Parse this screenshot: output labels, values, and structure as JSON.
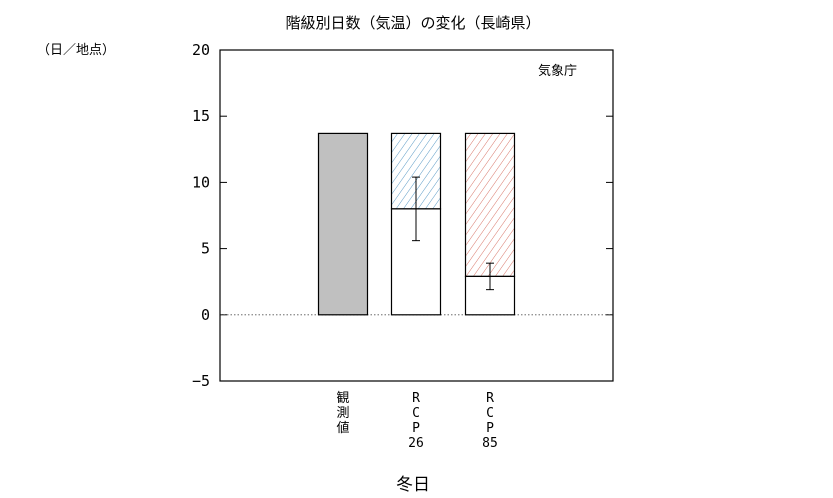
{
  "chart_data": {
    "type": "bar",
    "title": "階級別日数（気温）の変化（長崎県）",
    "unit_label": "（日／地点）",
    "agency": "気象庁",
    "xlabel": "冬日",
    "ylim": [
      -5,
      20
    ],
    "yticks": [
      -5,
      0,
      5,
      10,
      15,
      20
    ],
    "ytick_labels": [
      "−5",
      "0",
      "5",
      "10",
      "15",
      "20"
    ],
    "grid": false,
    "zero_line": "dotted",
    "categories": [
      {
        "label_lines": [
          "観",
          "測",
          "値"
        ]
      },
      {
        "label_lines": [
          "R",
          "C",
          "P",
          "26"
        ]
      },
      {
        "label_lines": [
          "R",
          "C",
          "P",
          "85"
        ]
      }
    ],
    "bars": [
      {
        "style": "solid-gray",
        "value": 13.7,
        "color": "#c0c0c0"
      },
      {
        "style": "white-with-hatch",
        "value": 8.0,
        "present_value": 13.7,
        "error": [
          5.6,
          10.4
        ],
        "hatch_color": "#5b9bc6"
      },
      {
        "style": "white-with-hatch",
        "value": 2.9,
        "present_value": 13.7,
        "error": [
          1.9,
          3.9
        ],
        "hatch_color": "#d9776a"
      }
    ]
  }
}
